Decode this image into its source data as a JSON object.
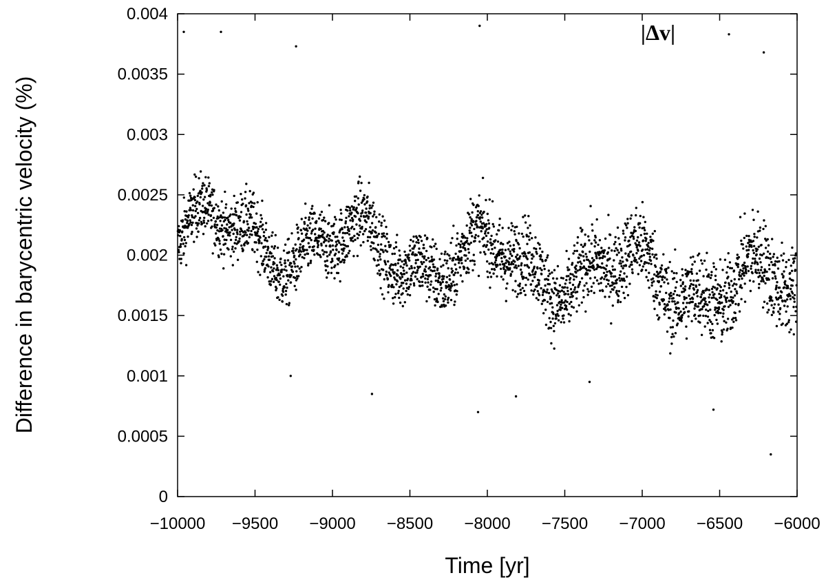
{
  "chart_data": {
    "type": "scatter",
    "title": "",
    "xlabel": "Time [yr]",
    "ylabel": "Difference in barycentric velocity (%)",
    "xlim": [
      -10000,
      -6000
    ],
    "ylim": [
      0,
      0.004
    ],
    "x_ticks": [
      "−10000",
      "−9500",
      "−9000",
      "−8500",
      "−8000",
      "−7500",
      "−7000",
      "−6500",
      "−6000"
    ],
    "y_ticks": [
      "0",
      "0.0005",
      "0.001",
      "0.0015",
      "0.002",
      "0.0025",
      "0.003",
      "0.0035",
      "0.004"
    ],
    "grid": false,
    "series": [
      {
        "name": "|Δv|",
        "color": "#000000",
        "marker": "dot",
        "sampling": "one point every 1 yr (approx. 4000 points)",
        "trend_mean_start": 0.0022,
        "trend_mean_end": 0.0017,
        "spread": 0.0007,
        "min_value": 0.00035,
        "max_value": 0.0039,
        "points": [
          [
            -9960,
            0.00385
          ],
          [
            -9720,
            0.00385
          ],
          [
            -9235,
            0.00373
          ],
          [
            -8050,
            0.0039
          ],
          [
            -6440,
            0.00383
          ],
          [
            -6215,
            0.00368
          ],
          [
            -9270,
            0.001
          ],
          [
            -8745,
            0.00085
          ],
          [
            -8060,
            0.0007
          ],
          [
            -7815,
            0.00083
          ],
          [
            -7340,
            0.00095
          ],
          [
            -6540,
            0.00072
          ],
          [
            -6170,
            0.00035
          ]
        ]
      }
    ]
  }
}
